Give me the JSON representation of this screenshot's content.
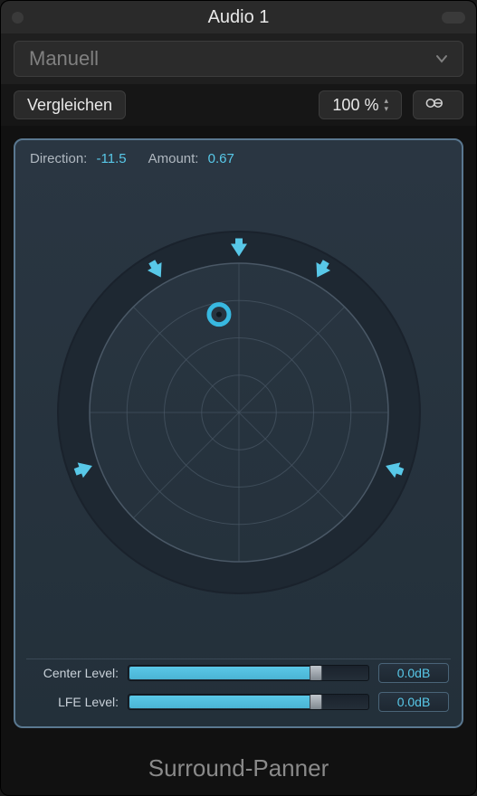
{
  "window": {
    "title": "Audio 1",
    "plugin_name": "Surround-Panner"
  },
  "preset": {
    "selected": "Manuell"
  },
  "toolbar": {
    "compare_label": "Vergleichen",
    "mix_percent": "100 %",
    "link_icon": "link-icon"
  },
  "panner": {
    "direction_label": "Direction:",
    "direction_value": "-11.5",
    "amount_label": "Amount:",
    "amount_value": "0.67",
    "radar": {
      "outer_ring_color": "#1e2832",
      "ring_stroke": "#4a5866",
      "cross_stroke": "#4a5866",
      "speaker_color": "#58c8e8",
      "puck_color": "#38b8e0",
      "speaker_angles_deg": [
        0,
        30,
        110,
        250,
        330
      ],
      "puck": {
        "angle_deg": -11.5,
        "amount": 0.67
      }
    },
    "sliders": {
      "center": {
        "label": "Center Level:",
        "fill_pct": 78,
        "value": "0.0dB"
      },
      "lfe": {
        "label": "LFE Level:",
        "fill_pct": 78,
        "value": "0.0dB"
      }
    }
  },
  "colors": {
    "background": "#1a1a1a",
    "panel_bg": "#2a343f",
    "panel_border": "#5a7890",
    "accent": "#58c8e8",
    "text_light": "#c0c0c0",
    "text_muted": "#8a8a8a"
  }
}
